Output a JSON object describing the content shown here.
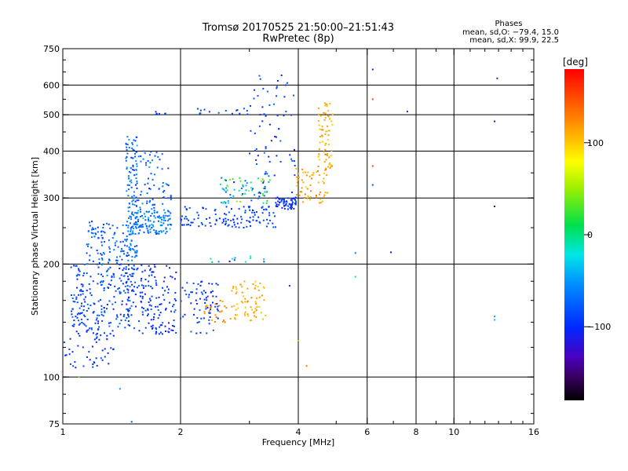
{
  "title_line1": "Tromsø 20170525 21:50:00–21:51:43",
  "title_line2": "RwPretec (8p)",
  "stats": {
    "heading": "Phases",
    "line1": "mean, sd,O: −79.4, 15.0",
    "line2": "mean, sd,X:  99.9, 22.5"
  },
  "chart_data": {
    "type": "scatter",
    "xlabel": "Frequency [MHz]",
    "ylabel": "Stationary phase Virtual Height [km]",
    "x_scale": "log",
    "y_scale": "log",
    "xlim": [
      1,
      16
    ],
    "ylim": [
      75,
      750
    ],
    "x_ticks": [
      {
        "value": 1,
        "label": "1"
      },
      {
        "value": 2,
        "label": "2"
      },
      {
        "value": 4,
        "label": "4"
      },
      {
        "value": 6,
        "label": "6"
      },
      {
        "value": 8,
        "label": "8"
      },
      {
        "value": 10,
        "label": "10"
      },
      {
        "value": 16,
        "label": "16"
      }
    ],
    "x_minor_ticks": [
      3,
      5,
      7,
      9,
      11,
      12,
      13,
      14,
      15
    ],
    "y_ticks": [
      {
        "value": 75,
        "label": "75"
      },
      {
        "value": 100,
        "label": "100"
      },
      {
        "value": 200,
        "label": "200"
      },
      {
        "value": 300,
        "label": "300"
      },
      {
        "value": 400,
        "label": "400"
      },
      {
        "value": 500,
        "label": "500"
      },
      {
        "value": 600,
        "label": "600"
      },
      {
        "value": 750,
        "label": "750"
      }
    ],
    "grid_x": [
      2,
      4,
      6,
      8,
      10
    ],
    "grid_y": [
      100,
      200,
      300,
      400,
      500,
      600
    ],
    "colorbar": {
      "label": "[deg]",
      "min": -180,
      "max": 180,
      "ticks": [
        {
          "value": 100,
          "label": "100"
        },
        {
          "value": 0,
          "label": "0"
        },
        {
          "value": -100,
          "label": "−100"
        }
      ]
    },
    "point_groups": [
      {
        "f": [
          1.0,
          1.35
        ],
        "h": [
          105,
          135
        ],
        "phase": -95,
        "sd": 15,
        "n": 60
      },
      {
        "f": [
          1.05,
          1.5
        ],
        "h": [
          135,
          200
        ],
        "phase": -85,
        "sd": 20,
        "n": 200
      },
      {
        "f": [
          1.15,
          1.45
        ],
        "h": [
          200,
          260
        ],
        "phase": -80,
        "sd": 20,
        "n": 90
      },
      {
        "f": [
          1.45,
          1.95
        ],
        "h": [
          130,
          200
        ],
        "phase": -95,
        "sd": 20,
        "n": 170
      },
      {
        "f": [
          1.45,
          1.55
        ],
        "h": [
          200,
          440
        ],
        "phase": -70,
        "sd": 25,
        "n": 130
      },
      {
        "f": [
          1.5,
          1.9
        ],
        "h": [
          240,
          280
        ],
        "phase": -60,
        "sd": 25,
        "n": 130
      },
      {
        "f": [
          1.5,
          1.9
        ],
        "h": [
          280,
          400
        ],
        "phase": -75,
        "sd": 20,
        "n": 70
      },
      {
        "f": [
          2.0,
          2.5
        ],
        "h": [
          130,
          180
        ],
        "phase": -95,
        "sd": 20,
        "n": 70
      },
      {
        "f": [
          2.0,
          3.5
        ],
        "h": [
          250,
          285
        ],
        "phase": -90,
        "sd": 15,
        "n": 120
      },
      {
        "f": [
          3.5,
          3.95
        ],
        "h": [
          280,
          300
        ],
        "phase": -95,
        "sd": 15,
        "n": 60
      },
      {
        "f": [
          3.95,
          4.75
        ],
        "h": [
          290,
          360
        ],
        "phase": 115,
        "sd": 20,
        "n": 60
      },
      {
        "f": [
          4.5,
          4.9
        ],
        "h": [
          360,
          540
        ],
        "phase": 110,
        "sd": 15,
        "n": 70
      },
      {
        "f": [
          2.5,
          3.4
        ],
        "h": [
          290,
          340
        ],
        "phase": -20,
        "sd": 80,
        "n": 70
      },
      {
        "f": [
          2.7,
          3.3
        ],
        "h": [
          140,
          180
        ],
        "phase": 110,
        "sd": 15,
        "n": 70
      },
      {
        "f": [
          2.3,
          2.7
        ],
        "h": [
          140,
          160
        ],
        "phase": 130,
        "sd": 20,
        "n": 25
      },
      {
        "f": [
          2.3,
          3.3
        ],
        "h": [
          200,
          210
        ],
        "phase": -50,
        "sd": 60,
        "n": 12
      },
      {
        "f": [
          3.0,
          3.95
        ],
        "h": [
          300,
          640
        ],
        "phase": -90,
        "sd": 20,
        "n": 70
      },
      {
        "f": [
          2.2,
          3.0
        ],
        "h": [
          500,
          520
        ],
        "phase": -90,
        "sd": 15,
        "n": 15
      },
      {
        "f": [
          1.7,
          1.95
        ],
        "h": [
          500,
          510
        ],
        "phase": -90,
        "sd": 15,
        "n": 6
      }
    ],
    "isolated_points": [
      {
        "x": 6.2,
        "y": 660,
        "phase": -110
      },
      {
        "x": 6.2,
        "y": 550,
        "phase": 150
      },
      {
        "x": 6.2,
        "y": 365,
        "phase": 150
      },
      {
        "x": 6.2,
        "y": 325,
        "phase": -80
      },
      {
        "x": 7.6,
        "y": 510,
        "phase": -110
      },
      {
        "x": 12.9,
        "y": 625,
        "phase": -110
      },
      {
        "x": 12.7,
        "y": 480,
        "phase": -110
      },
      {
        "x": 12.7,
        "y": 285,
        "phase": -150
      },
      {
        "x": 12.7,
        "y": 145,
        "phase": -40
      },
      {
        "x": 12.7,
        "y": 142,
        "phase": -30
      },
      {
        "x": 5.6,
        "y": 185,
        "phase": -10
      },
      {
        "x": 5.6,
        "y": 214,
        "phase": -60
      },
      {
        "x": 6.9,
        "y": 215,
        "phase": -110
      },
      {
        "x": 1.4,
        "y": 93,
        "phase": -50
      },
      {
        "x": 1.5,
        "y": 76,
        "phase": -80
      },
      {
        "x": 1.1,
        "y": 100,
        "phase": 30
      },
      {
        "x": 3.8,
        "y": 175,
        "phase": -100
      },
      {
        "x": 4.2,
        "y": 107,
        "phase": 130
      },
      {
        "x": 4.0,
        "y": 125,
        "phase": 40
      }
    ]
  }
}
